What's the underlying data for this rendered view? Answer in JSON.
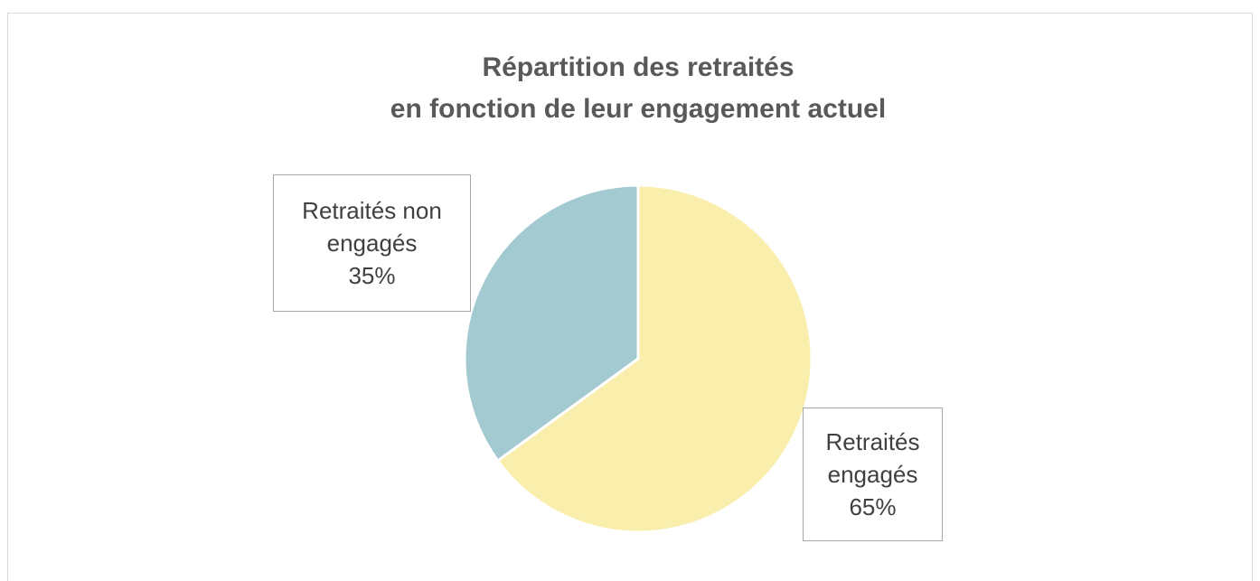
{
  "chart_data": {
    "type": "pie",
    "title": [
      "Répartition des retraités",
      "en fonction de leur engagement actuel"
    ],
    "categories": [
      "Retraités engagés",
      "Retraités non engagés"
    ],
    "values": [
      65,
      35
    ],
    "value_labels": [
      "65%",
      "35%"
    ],
    "colors": [
      "#f9eeab",
      "#a3cad0"
    ]
  }
}
